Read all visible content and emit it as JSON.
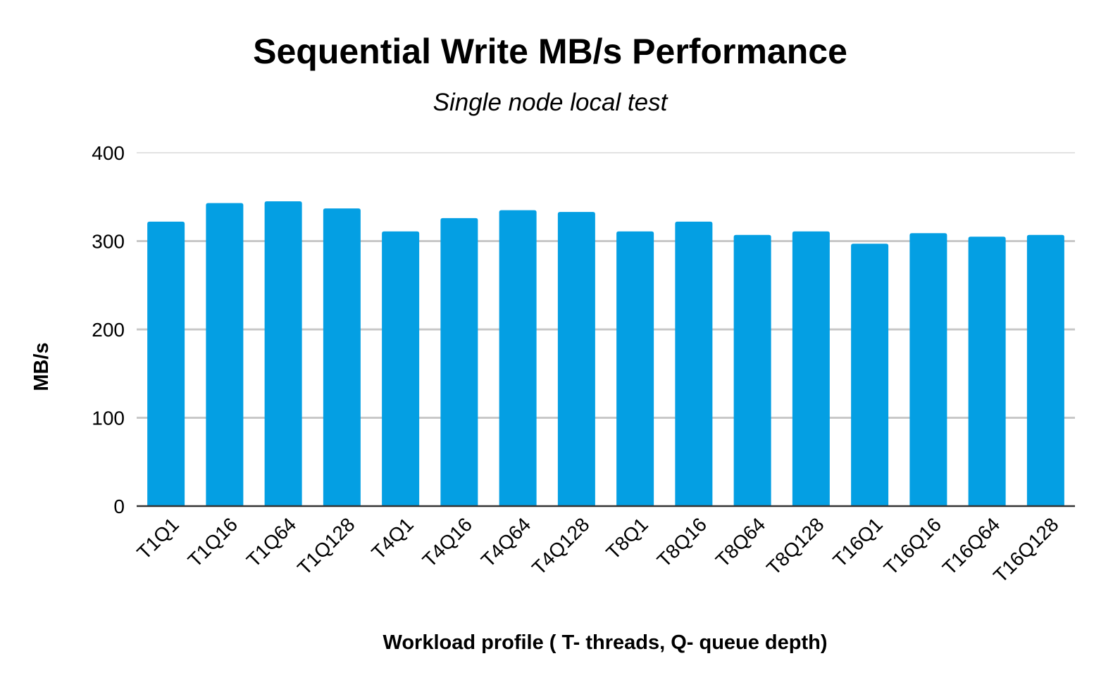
{
  "chart_data": {
    "type": "bar",
    "title": "Sequential Write MB/s Performance",
    "subtitle": "Single node local test",
    "xlabel": "Workload profile ( T- threads, Q- queue depth)",
    "ylabel": "MB/s",
    "ylim": [
      0,
      400
    ],
    "yticks": [
      "0",
      "100",
      "200",
      "300",
      "400"
    ],
    "grid": true,
    "bar_color": "#049fe3",
    "categories": [
      "T1Q1",
      "T1Q16",
      "T1Q64",
      "T1Q128",
      "T4Q1",
      "T4Q16",
      "T4Q64",
      "T4Q128",
      "T8Q1",
      "T8Q16",
      "T8Q64",
      "T8Q128",
      "T16Q1",
      "T16Q16",
      "T16Q64",
      "T16Q128"
    ],
    "values": [
      322,
      343,
      345,
      337,
      311,
      326,
      335,
      333,
      311,
      322,
      307,
      311,
      297,
      309,
      305,
      307
    ]
  }
}
